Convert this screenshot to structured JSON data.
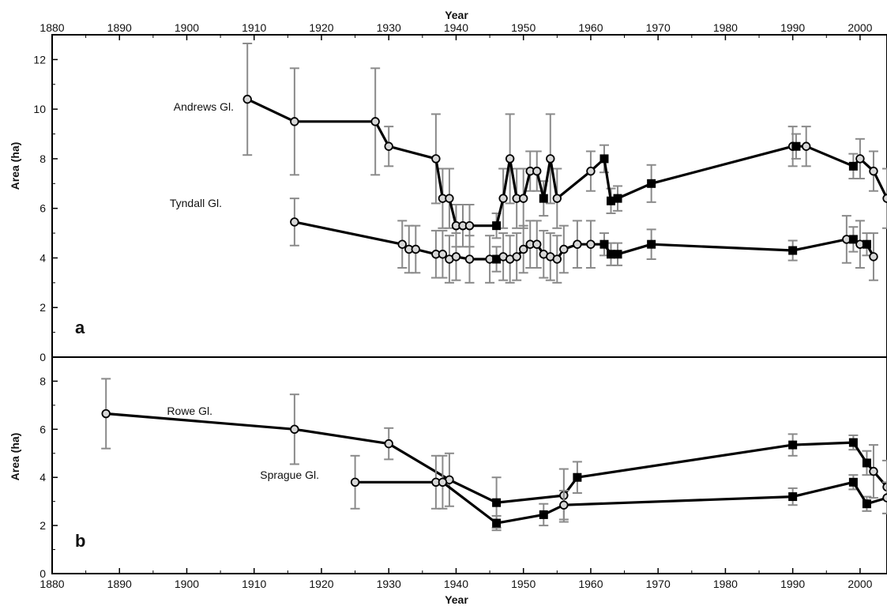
{
  "chart_data": [
    {
      "type": "line",
      "panel_label": "a",
      "xlabel": "Year",
      "ylabel": "Area (ha)",
      "xlim": [
        1880,
        2004
      ],
      "ylim": [
        0,
        13
      ],
      "x_ticks": [
        1880,
        1890,
        1900,
        1910,
        1920,
        1930,
        1940,
        1950,
        1960,
        1970,
        1980,
        1990,
        2000
      ],
      "y_ticks": [
        0,
        2,
        4,
        6,
        8,
        10,
        12
      ],
      "x_axis_position": "top",
      "grid": false,
      "legend": "none",
      "series": [
        {
          "name": "Andrews Gl.",
          "points": [
            {
              "x": 1909,
              "y": 10.4,
              "err": 2.25,
              "marker": "circle"
            },
            {
              "x": 1916,
              "y": 9.5,
              "err": 2.15,
              "marker": "circle"
            },
            {
              "x": 1928,
              "y": 9.5,
              "err": 2.15,
              "marker": "circle"
            },
            {
              "x": 1930,
              "y": 8.5,
              "err": 0.8,
              "marker": "circle"
            },
            {
              "x": 1937,
              "y": 8.0,
              "err": 1.8,
              "marker": "circle"
            },
            {
              "x": 1938,
              "y": 6.4,
              "err": 1.2,
              "marker": "circle"
            },
            {
              "x": 1939,
              "y": 6.4,
              "err": 1.2,
              "marker": "circle"
            },
            {
              "x": 1940,
              "y": 5.3,
              "err": 0.85,
              "marker": "circle"
            },
            {
              "x": 1941,
              "y": 5.3,
              "err": 0.85,
              "marker": "circle"
            },
            {
              "x": 1942,
              "y": 5.3,
              "err": 0.85,
              "marker": "circle"
            },
            {
              "x": 1946,
              "y": 5.3,
              "err": 0.5,
              "marker": "square"
            },
            {
              "x": 1947,
              "y": 6.4,
              "err": 1.2,
              "marker": "circle"
            },
            {
              "x": 1948,
              "y": 8.0,
              "err": 1.8,
              "marker": "circle"
            },
            {
              "x": 1949,
              "y": 6.4,
              "err": 1.2,
              "marker": "circle"
            },
            {
              "x": 1950,
              "y": 6.4,
              "err": 1.2,
              "marker": "circle"
            },
            {
              "x": 1951,
              "y": 7.5,
              "err": 0.8,
              "marker": "circle"
            },
            {
              "x": 1952,
              "y": 7.5,
              "err": 0.8,
              "marker": "circle"
            },
            {
              "x": 1953,
              "y": 6.4,
              "err": 0.7,
              "marker": "square"
            },
            {
              "x": 1954,
              "y": 8.0,
              "err": 1.8,
              "marker": "circle"
            },
            {
              "x": 1955,
              "y": 6.4,
              "err": 1.2,
              "marker": "circle"
            },
            {
              "x": 1960,
              "y": 7.5,
              "err": 0.8,
              "marker": "circle"
            },
            {
              "x": 1962,
              "y": 8.0,
              "err": 0.55,
              "marker": "square"
            },
            {
              "x": 1963,
              "y": 6.3,
              "err": 0.5,
              "marker": "square"
            },
            {
              "x": 1964,
              "y": 6.4,
              "err": 0.5,
              "marker": "square"
            },
            {
              "x": 1969,
              "y": 7.0,
              "err": 0.75,
              "marker": "square"
            },
            {
              "x": 1990,
              "y": 8.5,
              "err": 0.8,
              "marker": "circle"
            },
            {
              "x": 1990.5,
              "y": 8.5,
              "err": 0.5,
              "marker": "square"
            },
            {
              "x": 1992,
              "y": 8.5,
              "err": 0.8,
              "marker": "circle"
            },
            {
              "x": 1999,
              "y": 7.7,
              "err": 0.5,
              "marker": "square"
            },
            {
              "x": 2000,
              "y": 8.0,
              "err": 0.8,
              "marker": "circle"
            },
            {
              "x": 2002,
              "y": 7.5,
              "err": 0.8,
              "marker": "circle"
            },
            {
              "x": 2004,
              "y": 6.4,
              "err": 1.2,
              "marker": "circle"
            }
          ]
        },
        {
          "name": "Tyndall Gl.",
          "points": [
            {
              "x": 1916,
              "y": 5.45,
              "err": 0.95,
              "marker": "circle"
            },
            {
              "x": 1932,
              "y": 4.55,
              "err": 0.95,
              "marker": "circle"
            },
            {
              "x": 1933,
              "y": 4.35,
              "err": 0.95,
              "marker": "circle"
            },
            {
              "x": 1934,
              "y": 4.35,
              "err": 0.95,
              "marker": "circle"
            },
            {
              "x": 1937,
              "y": 4.15,
              "err": 0.95,
              "marker": "circle"
            },
            {
              "x": 1938,
              "y": 4.15,
              "err": 0.95,
              "marker": "circle"
            },
            {
              "x": 1939,
              "y": 3.95,
              "err": 0.95,
              "marker": "circle"
            },
            {
              "x": 1940,
              "y": 4.05,
              "err": 0.95,
              "marker": "circle"
            },
            {
              "x": 1942,
              "y": 3.95,
              "err": 0.95,
              "marker": "circle"
            },
            {
              "x": 1945,
              "y": 3.95,
              "err": 0.95,
              "marker": "circle"
            },
            {
              "x": 1946,
              "y": 3.95,
              "err": 0.5,
              "marker": "square"
            },
            {
              "x": 1947,
              "y": 4.05,
              "err": 0.95,
              "marker": "circle"
            },
            {
              "x": 1948,
              "y": 3.95,
              "err": 0.95,
              "marker": "circle"
            },
            {
              "x": 1949,
              "y": 4.05,
              "err": 0.95,
              "marker": "circle"
            },
            {
              "x": 1950,
              "y": 4.35,
              "err": 0.95,
              "marker": "circle"
            },
            {
              "x": 1951,
              "y": 4.55,
              "err": 0.95,
              "marker": "circle"
            },
            {
              "x": 1952,
              "y": 4.55,
              "err": 0.95,
              "marker": "circle"
            },
            {
              "x": 1953,
              "y": 4.15,
              "err": 0.95,
              "marker": "circle"
            },
            {
              "x": 1954,
              "y": 4.05,
              "err": 0.95,
              "marker": "circle"
            },
            {
              "x": 1955,
              "y": 3.95,
              "err": 0.95,
              "marker": "circle"
            },
            {
              "x": 1956,
              "y": 4.35,
              "err": 0.95,
              "marker": "circle"
            },
            {
              "x": 1958,
              "y": 4.55,
              "err": 0.95,
              "marker": "circle"
            },
            {
              "x": 1960,
              "y": 4.55,
              "err": 0.95,
              "marker": "circle"
            },
            {
              "x": 1962,
              "y": 4.55,
              "err": 0.45,
              "marker": "square"
            },
            {
              "x": 1963,
              "y": 4.15,
              "err": 0.45,
              "marker": "square"
            },
            {
              "x": 1964,
              "y": 4.15,
              "err": 0.45,
              "marker": "square"
            },
            {
              "x": 1969,
              "y": 4.55,
              "err": 0.6,
              "marker": "square"
            },
            {
              "x": 1990,
              "y": 4.3,
              "err": 0.4,
              "marker": "square"
            },
            {
              "x": 1998,
              "y": 4.75,
              "err": 0.95,
              "marker": "circle"
            },
            {
              "x": 1999,
              "y": 4.75,
              "err": 0.5,
              "marker": "square"
            },
            {
              "x": 2000,
              "y": 4.55,
              "err": 0.95,
              "marker": "circle"
            },
            {
              "x": 2001,
              "y": 4.55,
              "err": 0.45,
              "marker": "square"
            },
            {
              "x": 2002,
              "y": 4.05,
              "err": 0.95,
              "marker": "circle"
            }
          ]
        }
      ]
    },
    {
      "type": "line",
      "panel_label": "b",
      "xlabel": "Year",
      "ylabel": "Area (ha)",
      "xlim": [
        1880,
        2004
      ],
      "ylim": [
        0,
        9
      ],
      "x_ticks": [
        1880,
        1890,
        1900,
        1910,
        1920,
        1930,
        1940,
        1950,
        1960,
        1970,
        1980,
        1990,
        2000
      ],
      "y_ticks": [
        0,
        2,
        4,
        6,
        8
      ],
      "x_axis_position": "bottom",
      "grid": false,
      "legend": "none",
      "series": [
        {
          "name": "Rowe Gl.",
          "points": [
            {
              "x": 1888,
              "y": 6.65,
              "err": 1.45,
              "marker": "circle"
            },
            {
              "x": 1916,
              "y": 6.0,
              "err": 1.45,
              "marker": "circle"
            },
            {
              "x": 1930,
              "y": 5.4,
              "err": 0.65,
              "marker": "circle"
            },
            {
              "x": 1939,
              "y": 3.9,
              "err": 1.1,
              "marker": "circle"
            },
            {
              "x": 1946,
              "y": 2.95,
              "err": 1.05,
              "marker": "square"
            },
            {
              "x": 1956,
              "y": 3.25,
              "err": 1.1,
              "marker": "circle"
            },
            {
              "x": 1958,
              "y": 4.0,
              "err": 0.65,
              "marker": "square"
            },
            {
              "x": 1990,
              "y": 5.35,
              "err": 0.45,
              "marker": "square"
            },
            {
              "x": 1999,
              "y": 5.45,
              "err": 0.3,
              "marker": "square"
            },
            {
              "x": 2001,
              "y": 4.6,
              "err": 0.5,
              "marker": "square"
            },
            {
              "x": 2002,
              "y": 4.25,
              "err": 1.1,
              "marker": "circle"
            },
            {
              "x": 2004,
              "y": 3.6,
              "err": 1.1,
              "marker": "circle"
            }
          ]
        },
        {
          "name": "Sprague Gl.",
          "points": [
            {
              "x": 1925,
              "y": 3.8,
              "err": 1.1,
              "marker": "circle"
            },
            {
              "x": 1937,
              "y": 3.8,
              "err": 1.1,
              "marker": "circle"
            },
            {
              "x": 1938,
              "y": 3.8,
              "err": 1.1,
              "marker": "circle"
            },
            {
              "x": 1946,
              "y": 2.1,
              "err": 0.3,
              "marker": "square"
            },
            {
              "x": 1953,
              "y": 2.45,
              "err": 0.45,
              "marker": "square"
            },
            {
              "x": 1956,
              "y": 2.85,
              "err": 0.6,
              "marker": "circle"
            },
            {
              "x": 1990,
              "y": 3.2,
              "err": 0.35,
              "marker": "square"
            },
            {
              "x": 1999,
              "y": 3.8,
              "err": 0.3,
              "marker": "square"
            },
            {
              "x": 2001,
              "y": 2.9,
              "err": 0.3,
              "marker": "square"
            },
            {
              "x": 2004,
              "y": 3.15,
              "err": 0.65,
              "marker": "circle"
            }
          ]
        }
      ]
    }
  ]
}
